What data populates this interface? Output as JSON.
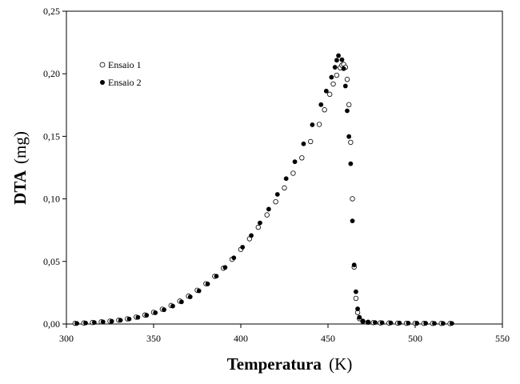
{
  "chart_data": {
    "type": "scatter",
    "xlabel": "Temperatura",
    "xlabel_unit": "(K)",
    "ylabel": "DTA",
    "ylabel_unit": "(mg)",
    "xlim": [
      300,
      550
    ],
    "ylim": [
      0,
      0.25
    ],
    "x_ticks": [
      "300",
      "350",
      "400",
      "450",
      "500",
      "550"
    ],
    "y_ticks": [
      "0,00",
      "0,05",
      "0,10",
      "0,15",
      "0,20",
      "0,25"
    ],
    "grid": false,
    "legend_position": "top-left",
    "series": [
      {
        "name": "Ensaio 1",
        "marker": "open-circle",
        "color": "#000000",
        "x": [
          305,
          310,
          315,
          320,
          325,
          330,
          335,
          340,
          345,
          350,
          355,
          360,
          365,
          370,
          375,
          380,
          385,
          390,
          395,
          400,
          405,
          410,
          415,
          420,
          425,
          430,
          435,
          440,
          445,
          448,
          451,
          453,
          455,
          457,
          458,
          459,
          460,
          461,
          462,
          463,
          464,
          465,
          466,
          467,
          468,
          470,
          473,
          476,
          480,
          485,
          490,
          495,
          500,
          505,
          510,
          515,
          520
        ],
        "y": [
          0.0005,
          0.0008,
          0.0012,
          0.0017,
          0.0023,
          0.0031,
          0.0041,
          0.0055,
          0.0072,
          0.0093,
          0.0118,
          0.0148,
          0.0183,
          0.0223,
          0.027,
          0.0322,
          0.0381,
          0.0446,
          0.0517,
          0.0596,
          0.0681,
          0.0773,
          0.0872,
          0.0977,
          0.1088,
          0.1205,
          0.1328,
          0.1458,
          0.1595,
          0.1712,
          0.1836,
          0.1918,
          0.1988,
          0.2048,
          0.2068,
          0.2075,
          0.2052,
          0.1955,
          0.1753,
          0.1452,
          0.1001,
          0.0455,
          0.0205,
          0.0092,
          0.0043,
          0.0021,
          0.0014,
          0.0011,
          0.0009,
          0.0008,
          0.0007,
          0.0006,
          0.0006,
          0.0005,
          0.0005,
          0.0005,
          0.0004
        ]
      },
      {
        "name": "Ensaio 2",
        "marker": "filled-circle",
        "color": "#000000",
        "x": [
          306,
          311,
          316,
          321,
          326,
          331,
          336,
          341,
          346,
          351,
          356,
          361,
          366,
          371,
          376,
          381,
          386,
          391,
          396,
          401,
          406,
          411,
          416,
          421,
          426,
          431,
          436,
          441,
          446,
          449,
          452,
          454,
          455,
          456,
          458,
          459,
          460,
          461,
          462,
          463,
          464,
          465,
          466,
          467,
          468,
          470,
          473,
          477,
          481,
          486,
          491,
          496,
          501,
          506,
          511,
          516,
          521
        ],
        "y": [
          0.0005,
          0.0008,
          0.0012,
          0.0017,
          0.0022,
          0.003,
          0.004,
          0.0053,
          0.007,
          0.009,
          0.0114,
          0.0143,
          0.0177,
          0.0217,
          0.0265,
          0.032,
          0.0382,
          0.0452,
          0.0529,
          0.0614,
          0.0707,
          0.0808,
          0.0918,
          0.1036,
          0.1162,
          0.1297,
          0.144,
          0.1592,
          0.1753,
          0.1862,
          0.1972,
          0.2052,
          0.2108,
          0.2145,
          0.2112,
          0.2041,
          0.1902,
          0.1704,
          0.1498,
          0.1281,
          0.0824,
          0.0472,
          0.0258,
          0.0121,
          0.0053,
          0.0024,
          0.0015,
          0.0012,
          0.001,
          0.0009,
          0.0008,
          0.0007,
          0.0006,
          0.0006,
          0.0005,
          0.0005,
          0.0005
        ]
      }
    ]
  }
}
